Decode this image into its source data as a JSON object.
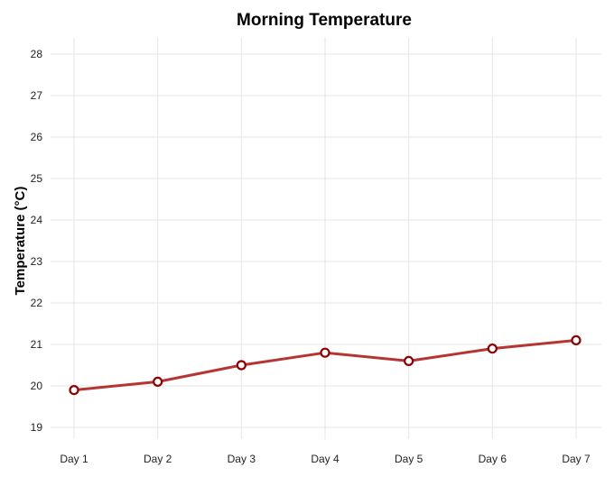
{
  "chart_data": {
    "type": "line",
    "title": "Morning Temperature",
    "xlabel": "",
    "ylabel": "Temperature (°C)",
    "categories": [
      "Day 1",
      "Day 2",
      "Day 3",
      "Day 4",
      "Day 5",
      "Day 6",
      "Day 7"
    ],
    "series": [
      {
        "values": [
          19.9,
          20.1,
          20.5,
          20.8,
          20.6,
          20.9,
          21.1
        ],
        "line_color": "#b53535",
        "marker_edge_color": "#8b0000",
        "marker_fill_color": "#ffffff"
      }
    ],
    "ylim": [
      18.7,
      28.4
    ],
    "yticks": [
      19,
      20,
      21,
      22,
      23,
      24,
      25,
      26,
      27,
      28
    ],
    "grid": true,
    "legend": "none"
  }
}
